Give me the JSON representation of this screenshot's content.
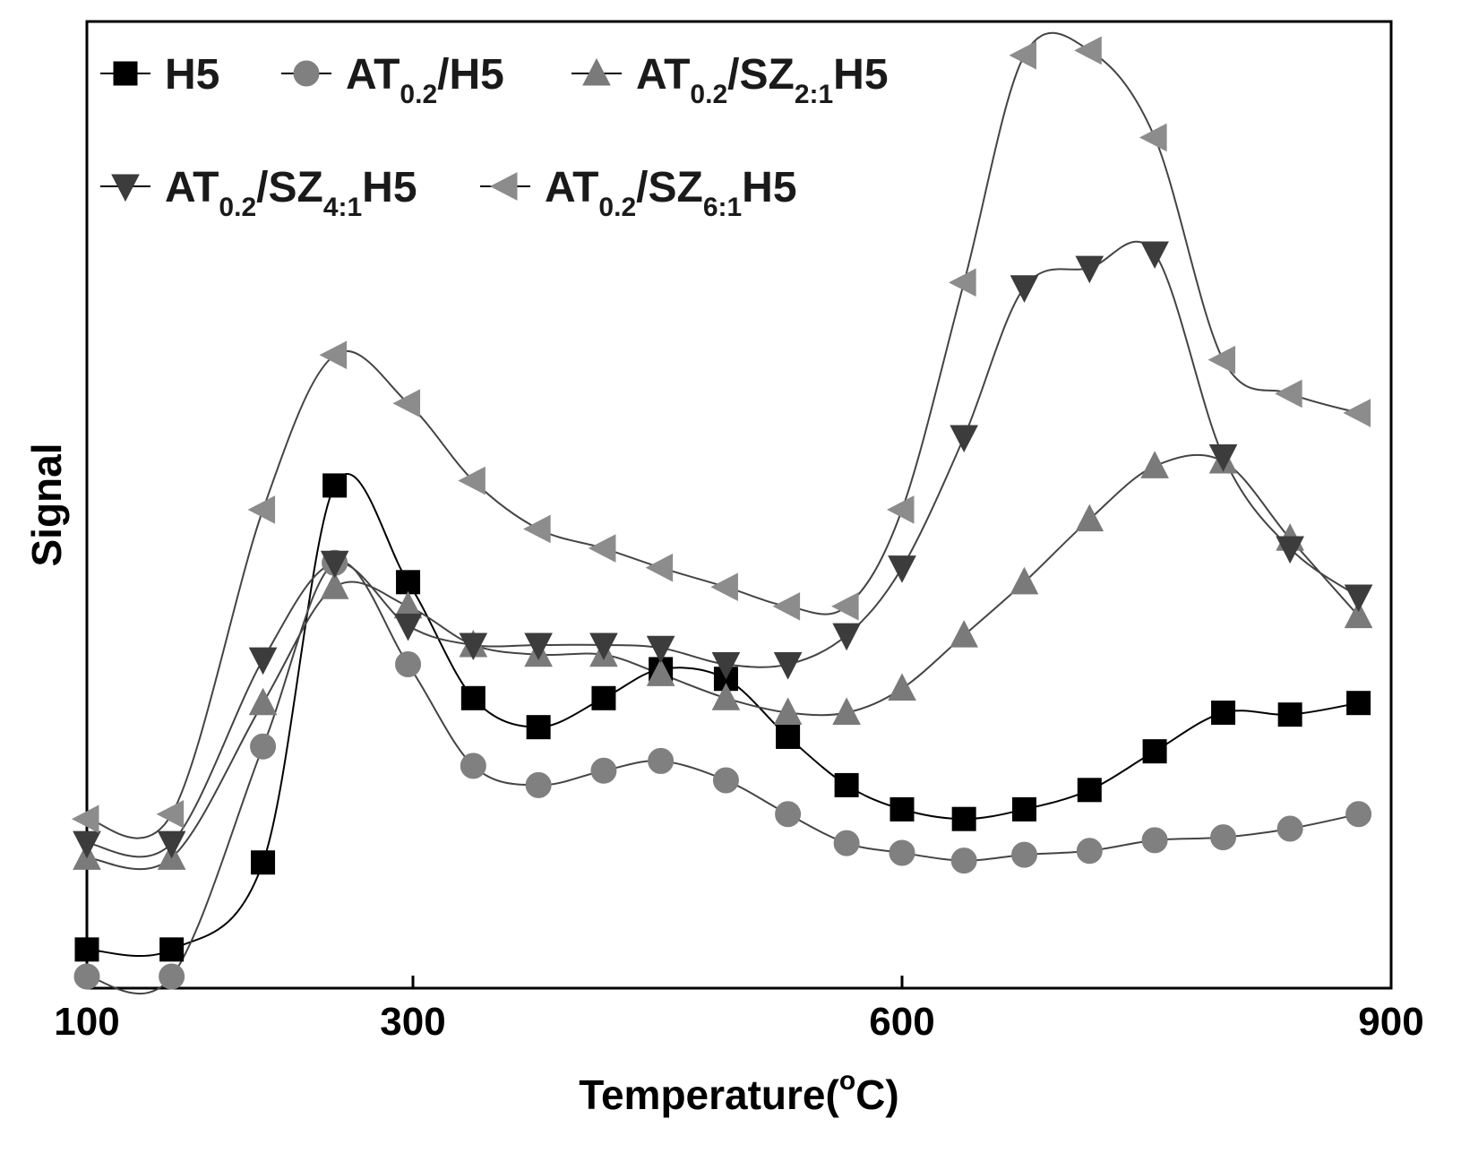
{
  "chart_data": {
    "type": "line",
    "title": "",
    "xlabel": "Temperature(°C)",
    "xlabel_parts": {
      "pre": "Temperature(",
      "sup": "o",
      "post": "C)"
    },
    "ylabel": "Signal",
    "xlim": [
      100,
      900
    ],
    "ylim": [
      0,
      100
    ],
    "x_ticks": [
      "100",
      "300",
      "600",
      "900"
    ],
    "x_tick_values": [
      100,
      300,
      600,
      900
    ],
    "y_ticks_shown": false,
    "grid": false,
    "legend_position": "top-left",
    "x": [
      100,
      152,
      208,
      252,
      297,
      337,
      377,
      417,
      452,
      492,
      530,
      566,
      600,
      638,
      675,
      715,
      755,
      797,
      838,
      880
    ],
    "series": [
      {
        "name": "H5",
        "label_parts": [
          {
            "t": "H5",
            "sub": false
          }
        ],
        "marker": "square",
        "color": "#000000",
        "values": [
          4,
          4,
          13,
          52,
          42,
          30,
          27,
          30,
          33,
          32,
          26,
          21,
          18.5,
          17.5,
          18.5,
          20.5,
          24.5,
          28.5,
          28.3,
          29.5
        ]
      },
      {
        "name": "AT0.2/H5",
        "label_parts": [
          {
            "t": "AT",
            "sub": false
          },
          {
            "t": "0.2",
            "sub": true
          },
          {
            "t": "/H5",
            "sub": false
          }
        ],
        "marker": "circle",
        "color": "#808080",
        "values": [
          1.2,
          1.2,
          25,
          44,
          33.5,
          23,
          21,
          22.5,
          23.5,
          21.5,
          18,
          15,
          14,
          13.2,
          13.8,
          14.2,
          15.3,
          15.6,
          16.5,
          18
        ]
      },
      {
        "name": "AT0.2/SZ2:1H5",
        "label_parts": [
          {
            "t": "AT",
            "sub": false
          },
          {
            "t": "0.2",
            "sub": true
          },
          {
            "t": "/SZ",
            "sub": false
          },
          {
            "t": "2:1",
            "sub": true
          },
          {
            "t": "H5",
            "sub": false
          }
        ],
        "marker": "triangle-up",
        "color": "#7a7a7a",
        "values": [
          13.5,
          13.5,
          29.5,
          41.5,
          39.5,
          35.5,
          34.5,
          34.5,
          32.5,
          30,
          28.5,
          28.5,
          31,
          36.5,
          42,
          48.5,
          54,
          54.5,
          46.5,
          38.5
        ]
      },
      {
        "name": "AT0.2/SZ4:1H5",
        "label_parts": [
          {
            "t": "AT",
            "sub": false
          },
          {
            "t": "0.2",
            "sub": true
          },
          {
            "t": "/SZ",
            "sub": false
          },
          {
            "t": "4:1",
            "sub": true
          },
          {
            "t": "H5",
            "sub": false
          }
        ],
        "marker": "triangle-down",
        "color": "#3c3c3c",
        "values": [
          15,
          15,
          34,
          44,
          37.5,
          35.5,
          35.5,
          35.5,
          35.2,
          33.5,
          33.5,
          36.5,
          43.5,
          57,
          72.5,
          74.5,
          76,
          55,
          45.5,
          40.5
        ]
      },
      {
        "name": "AT0.2/SZ6:1H5",
        "label_parts": [
          {
            "t": "AT",
            "sub": false
          },
          {
            "t": "0.2",
            "sub": true
          },
          {
            "t": "/SZ",
            "sub": false
          },
          {
            "t": "6:1",
            "sub": true
          },
          {
            "t": "H5",
            "sub": false
          }
        ],
        "marker": "triangle-left",
        "color": "#8c8c8c",
        "values": [
          17.5,
          18,
          49.5,
          65.5,
          60.5,
          52.5,
          47.5,
          45.5,
          43.5,
          41.5,
          39.5,
          39.5,
          49.5,
          73,
          96.5,
          97,
          88,
          65,
          61.5,
          59.5
        ]
      }
    ]
  }
}
